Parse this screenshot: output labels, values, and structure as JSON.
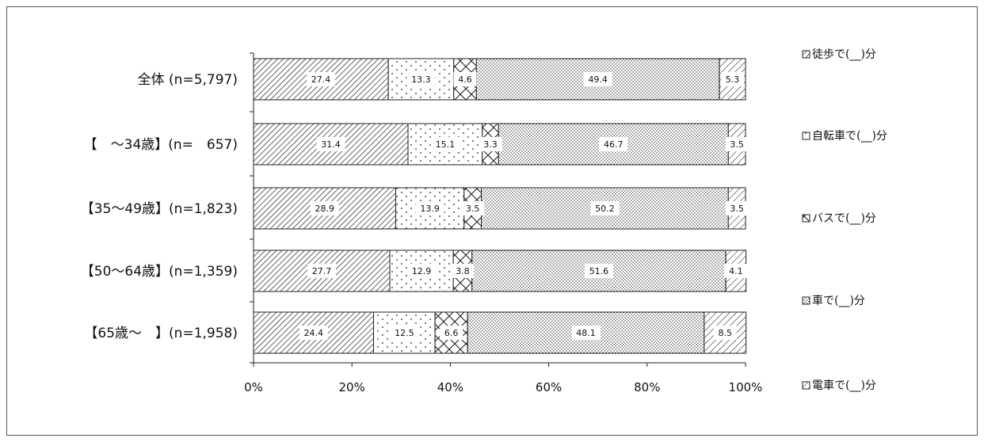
{
  "chart_data": {
    "type": "bar",
    "orientation": "horizontal",
    "stacked": true,
    "percent_stacked": true,
    "categories": [
      "全体 (n=5,797)",
      "【　～34歳】(n=　657)",
      "【35～49歳】(n=1,823)",
      "【50～64歳】(n=1,359)",
      "【65歳～　】(n=1,958)"
    ],
    "series": [
      {
        "name": "徒歩で(__)分",
        "values": [
          27.4,
          31.4,
          28.9,
          27.7,
          24.4
        ],
        "pattern": "diag-dense"
      },
      {
        "name": "自転車で(__)分",
        "values": [
          13.3,
          15.1,
          13.9,
          12.9,
          12.5
        ],
        "pattern": "dots-sparse"
      },
      {
        "name": "バスで(__)分",
        "values": [
          4.6,
          3.3,
          3.5,
          3.8,
          6.6
        ],
        "pattern": "crosshatch"
      },
      {
        "name": "車で(__)分",
        "values": [
          49.4,
          46.7,
          50.2,
          51.6,
          48.1
        ],
        "pattern": "dots-dense"
      },
      {
        "name": "電車で(__)分",
        "values": [
          5.3,
          3.5,
          3.5,
          4.1,
          8.5
        ],
        "pattern": "diag"
      }
    ],
    "xlim": [
      0,
      100
    ],
    "xticks": [
      "0%",
      "20%",
      "40%",
      "60%",
      "80%",
      "100%"
    ],
    "legend_position": "right",
    "grid": false
  }
}
